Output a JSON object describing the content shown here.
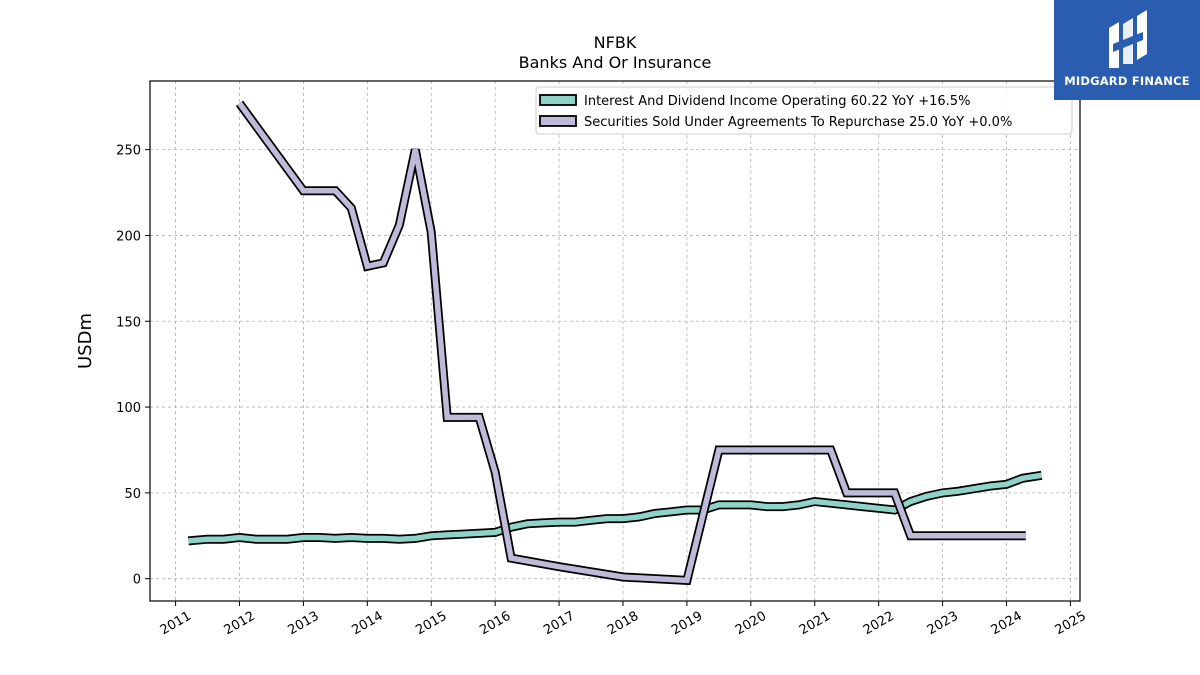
{
  "chart_data": {
    "type": "line",
    "title": "NFBK",
    "subtitle": "Banks And Or Insurance",
    "ylabel": "USDm",
    "xlim": [
      2010.6,
      2025.15
    ],
    "ylim": [
      -13,
      290
    ],
    "grid": true,
    "legend_position": "top-right",
    "x_ticks": [
      2011,
      2012,
      2013,
      2014,
      2015,
      2016,
      2017,
      2018,
      2019,
      2020,
      2021,
      2022,
      2023,
      2024,
      2025
    ],
    "y_ticks": [
      0,
      50,
      100,
      150,
      200,
      250
    ],
    "series": [
      {
        "name": "Interest And Dividend Income Operating",
        "legend_label": "Interest And Dividend Income Operating  60.22 YoY +16.5%",
        "color": "#8dd3c7",
        "x": [
          2011.2,
          2011.5,
          2011.75,
          2012.0,
          2012.25,
          2012.5,
          2012.75,
          2013.0,
          2013.25,
          2013.5,
          2013.75,
          2014.0,
          2014.25,
          2014.5,
          2014.75,
          2015.0,
          2015.25,
          2015.5,
          2015.75,
          2016.0,
          2016.25,
          2016.5,
          2016.75,
          2017.0,
          2017.25,
          2017.5,
          2017.75,
          2018.0,
          2018.25,
          2018.5,
          2018.75,
          2019.0,
          2019.25,
          2019.5,
          2019.75,
          2020.0,
          2020.25,
          2020.5,
          2020.75,
          2021.0,
          2021.25,
          2021.5,
          2021.75,
          2022.0,
          2022.25,
          2022.5,
          2022.75,
          2023.0,
          2023.25,
          2023.5,
          2023.75,
          2024.0,
          2024.25,
          2024.55
        ],
        "values": [
          22,
          23,
          23,
          24,
          23,
          23,
          23,
          24,
          24,
          23.5,
          24,
          23.5,
          23.5,
          23,
          23.5,
          25,
          25.5,
          26,
          26.5,
          27,
          30,
          32,
          32.5,
          33,
          33,
          34,
          35,
          35,
          36,
          38,
          39,
          40,
          40,
          43,
          43,
          43,
          42,
          42,
          43,
          45,
          44,
          43,
          42,
          41,
          40,
          45,
          48,
          50,
          51,
          52.5,
          54,
          55,
          58.5,
          60.22
        ]
      },
      {
        "name": "Securities Sold Under Agreements To Repurchase",
        "legend_label": "Securities Sold Under Agreements To Repurchase  25.0 YoY +0.0%",
        "color": "#bebada",
        "x": [
          2012.0,
          2013.0,
          2013.5,
          2013.75,
          2014.0,
          2014.25,
          2014.5,
          2014.75,
          2015.0,
          2015.25,
          2015.5,
          2015.75,
          2016.0,
          2016.25,
          2017.0,
          2018.0,
          2019.0,
          2019.5,
          2020.0,
          2020.5,
          2021.0,
          2021.25,
          2021.5,
          2022.0,
          2022.25,
          2022.5,
          2023.0,
          2023.5,
          2024.0,
          2024.3
        ],
        "values": [
          277,
          226,
          226,
          216,
          182,
          184,
          206,
          250,
          202,
          94,
          94,
          94,
          62,
          12,
          7,
          1,
          -1,
          75,
          75,
          75,
          75,
          75,
          50,
          50,
          50,
          25,
          25,
          25,
          25,
          25
        ]
      }
    ]
  },
  "logo": {
    "text": "MIDGARD FINANCE",
    "bg_color": "#2a5db0"
  }
}
